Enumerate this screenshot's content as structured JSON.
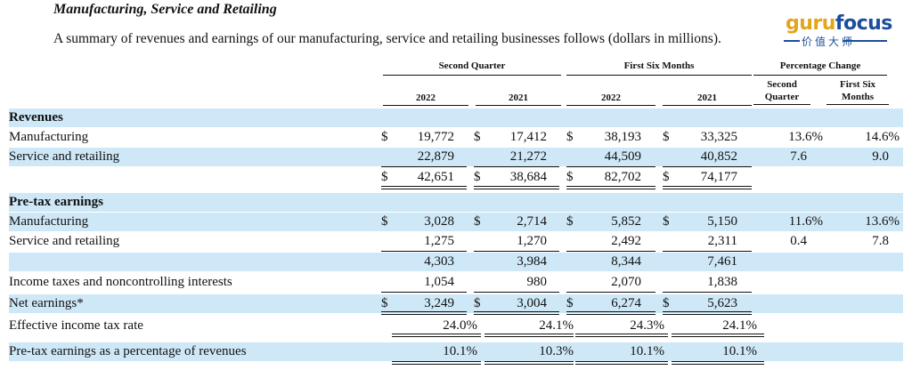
{
  "section_title": "Manufacturing, Service and Retailing",
  "intro": "A summary of revenues and earnings of our manufacturing, service and retailing businesses follows (dollars in millions).",
  "watermark": {
    "main_a": "guru",
    "main_b": "focus",
    "sub": "价值大师"
  },
  "headers": {
    "second_quarter": "Second Quarter",
    "first_six_months": "First Six Months",
    "percentage_change": "Percentage Change",
    "pc_second_quarter": "Second Quarter",
    "pc_first_six_months": "First Six Months",
    "years": [
      "2022",
      "2021",
      "2022",
      "2021"
    ]
  },
  "rows": [
    {
      "label": "Revenues",
      "bold": true
    },
    {
      "label": "Manufacturing",
      "dollar": true,
      "values": [
        "19,772",
        "17,412",
        "38,193",
        "33,325"
      ],
      "pct": [
        "13.6%",
        "14.6%"
      ]
    },
    {
      "label": "Service and retailing",
      "values": [
        "22,879",
        "21,272",
        "44,509",
        "40,852"
      ],
      "pct": [
        "7.6",
        "9.0"
      ]
    },
    {
      "label": "",
      "dollar": true,
      "values": [
        "42,651",
        "38,684",
        "82,702",
        "74,177"
      ]
    },
    {
      "label": "Pre-tax earnings",
      "bold": true
    },
    {
      "label": "Manufacturing",
      "dollar": true,
      "values": [
        "3,028",
        "2,714",
        "5,852",
        "5,150"
      ],
      "pct": [
        "11.6%",
        "13.6%"
      ]
    },
    {
      "label": "Service and retailing",
      "values": [
        "1,275",
        "1,270",
        "2,492",
        "2,311"
      ],
      "pct": [
        "0.4",
        "7.8"
      ]
    },
    {
      "label": "",
      "values": [
        "4,303",
        "3,984",
        "8,344",
        "7,461"
      ]
    },
    {
      "label": "Income taxes and noncontrolling interests",
      "values": [
        "1,054",
        "980",
        "2,070",
        "1,838"
      ]
    },
    {
      "label": "Net earnings*",
      "dollar": true,
      "values": [
        "3,249",
        "3,004",
        "6,274",
        "5,623"
      ]
    },
    {
      "label": "Effective income tax rate",
      "values": [
        "24.0%",
        "24.1%",
        "24.3%",
        "24.1%"
      ]
    },
    {
      "label": "Pre-tax earnings as a percentage of revenues",
      "values": [
        "10.1%",
        "10.3%",
        "10.1%",
        "10.1%"
      ]
    }
  ],
  "dollar_sign": "$",
  "colors": {
    "band": "#cfe8f7",
    "watermark_gold": "#e2a51c",
    "watermark_blue": "#1c4e9c"
  }
}
